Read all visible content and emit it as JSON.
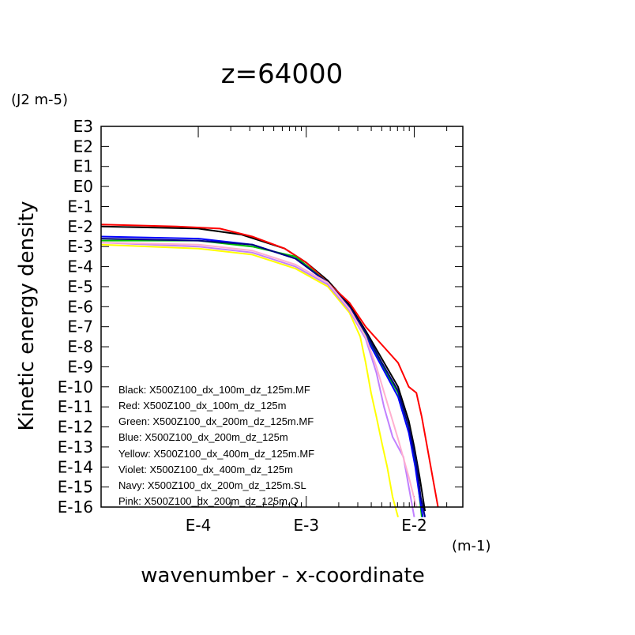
{
  "chart_data": {
    "type": "line",
    "title": "z=64000",
    "ylabel": "Kinetic energy density",
    "y_unit": "(J2 m-5)",
    "xlabel": "wavenumber - x-coordinate",
    "x_unit": "(m-1)",
    "x_scale": "log",
    "y_scale": "log",
    "xlim_exp": [
      -4.9,
      -1.55
    ],
    "ylim_exp": [
      -16,
      3
    ],
    "x_ticks": [
      "E-4",
      "E-3",
      "E-2"
    ],
    "y_ticks": [
      "E3",
      "E2",
      "E1",
      "E0",
      "E-1",
      "E-2",
      "E-3",
      "E-4",
      "E-5",
      "E-6",
      "E-7",
      "E-8",
      "E-9",
      "E-10",
      "E-11",
      "E-12",
      "E-13",
      "E-14",
      "E-15",
      "E-16"
    ],
    "legend_position": "lower-left, inside plot",
    "series": [
      {
        "name": "Black: X500Z100_dx_100m_dz_125m.MF",
        "color": "#000000",
        "points": [
          [
            -4.9,
            -2.0
          ],
          [
            -4.0,
            -2.1
          ],
          [
            -3.6,
            -2.4
          ],
          [
            -3.2,
            -3.1
          ],
          [
            -3.0,
            -3.8
          ],
          [
            -2.8,
            -4.7
          ],
          [
            -2.6,
            -5.9
          ],
          [
            -2.45,
            -7.2
          ],
          [
            -2.3,
            -8.6
          ],
          [
            -2.15,
            -10.0
          ],
          [
            -2.05,
            -11.7
          ],
          [
            -2.0,
            -13.0
          ],
          [
            -1.95,
            -14.5
          ],
          [
            -1.9,
            -16.2
          ]
        ]
      },
      {
        "name": "Red: X500Z100_dx_100m_dz_125m",
        "color": "#ff0000",
        "points": [
          [
            -4.9,
            -1.9
          ],
          [
            -4.2,
            -2.0
          ],
          [
            -3.8,
            -2.1
          ],
          [
            -3.5,
            -2.5
          ],
          [
            -3.2,
            -3.1
          ],
          [
            -3.0,
            -3.8
          ],
          [
            -2.8,
            -4.8
          ],
          [
            -2.6,
            -5.8
          ],
          [
            -2.45,
            -7.0
          ],
          [
            -2.3,
            -7.9
          ],
          [
            -2.15,
            -8.8
          ],
          [
            -2.05,
            -10.0
          ],
          [
            -1.98,
            -10.3
          ],
          [
            -1.93,
            -11.5
          ],
          [
            -1.88,
            -13.0
          ],
          [
            -1.82,
            -14.8
          ],
          [
            -1.78,
            -16.0
          ]
        ]
      },
      {
        "name": "Green: X500Z100_dx_200m_dz_125m.MF",
        "color": "#00c000",
        "points": [
          [
            -4.9,
            -2.7
          ],
          [
            -4.0,
            -2.7
          ],
          [
            -3.5,
            -3.0
          ],
          [
            -3.1,
            -3.5
          ],
          [
            -2.8,
            -4.8
          ],
          [
            -2.6,
            -6.0
          ],
          [
            -2.45,
            -7.4
          ],
          [
            -2.3,
            -8.9
          ],
          [
            -2.15,
            -10.3
          ],
          [
            -2.05,
            -12.0
          ],
          [
            -2.0,
            -13.5
          ],
          [
            -1.96,
            -15.0
          ],
          [
            -1.93,
            -16.5
          ]
        ]
      },
      {
        "name": "Blue: X500Z100_dx_200m_dz_125m",
        "color": "#0000ff",
        "points": [
          [
            -4.9,
            -2.5
          ],
          [
            -4.0,
            -2.6
          ],
          [
            -3.5,
            -2.9
          ],
          [
            -3.1,
            -3.6
          ],
          [
            -2.8,
            -4.8
          ],
          [
            -2.6,
            -6.1
          ],
          [
            -2.45,
            -7.5
          ],
          [
            -2.3,
            -9.0
          ],
          [
            -2.15,
            -10.5
          ],
          [
            -2.05,
            -12.3
          ],
          [
            -1.99,
            -14.0
          ],
          [
            -1.95,
            -15.5
          ],
          [
            -1.92,
            -16.5
          ]
        ]
      },
      {
        "name": "Yellow: X500Z100_dx_400m_dz_125m.MF",
        "color": "#ffff00",
        "points": [
          [
            -4.9,
            -2.9
          ],
          [
            -4.0,
            -3.1
          ],
          [
            -3.5,
            -3.4
          ],
          [
            -3.1,
            -4.1
          ],
          [
            -2.8,
            -5.0
          ],
          [
            -2.6,
            -6.3
          ],
          [
            -2.5,
            -7.5
          ],
          [
            -2.45,
            -8.8
          ],
          [
            -2.4,
            -10.3
          ],
          [
            -2.35,
            -11.5
          ],
          [
            -2.3,
            -12.8
          ],
          [
            -2.25,
            -14.0
          ],
          [
            -2.2,
            -15.5
          ],
          [
            -2.15,
            -16.5
          ]
        ]
      },
      {
        "name": "Violet: X500Z100_dx_400m_dz_125m",
        "color": "#c080ff",
        "points": [
          [
            -4.9,
            -2.8
          ],
          [
            -4.0,
            -3.0
          ],
          [
            -3.5,
            -3.3
          ],
          [
            -3.1,
            -4.0
          ],
          [
            -2.8,
            -4.9
          ],
          [
            -2.6,
            -6.2
          ],
          [
            -2.45,
            -7.6
          ],
          [
            -2.35,
            -9.3
          ],
          [
            -2.28,
            -11.0
          ],
          [
            -2.2,
            -12.5
          ],
          [
            -2.1,
            -13.5
          ],
          [
            -2.05,
            -15.0
          ],
          [
            -2.0,
            -16.5
          ]
        ]
      },
      {
        "name": "Navy: X500Z100_dx_200m_dz_125m.SL",
        "color": "#000080",
        "points": [
          [
            -4.9,
            -2.6
          ],
          [
            -4.0,
            -2.7
          ],
          [
            -3.5,
            -2.9
          ],
          [
            -3.1,
            -3.6
          ],
          [
            -2.8,
            -4.8
          ],
          [
            -2.6,
            -6.0
          ],
          [
            -2.45,
            -7.3
          ],
          [
            -2.3,
            -8.8
          ],
          [
            -2.15,
            -10.2
          ],
          [
            -2.05,
            -12.0
          ],
          [
            -1.98,
            -13.8
          ],
          [
            -1.94,
            -15.5
          ],
          [
            -1.9,
            -16.5
          ]
        ]
      },
      {
        "name": "Pink: X500Z100_dx_200m_dz_125m.Q",
        "color": "#ffb0d0",
        "points": [
          [
            -4.9,
            -2.8
          ],
          [
            -4.0,
            -2.9
          ],
          [
            -3.5,
            -3.2
          ],
          [
            -3.1,
            -3.9
          ],
          [
            -2.8,
            -4.8
          ],
          [
            -2.6,
            -6.1
          ],
          [
            -2.45,
            -7.5
          ],
          [
            -2.35,
            -9.0
          ],
          [
            -2.25,
            -10.8
          ],
          [
            -2.15,
            -12.6
          ],
          [
            -2.05,
            -14.5
          ],
          [
            -1.98,
            -16.0
          ]
        ]
      }
    ]
  }
}
